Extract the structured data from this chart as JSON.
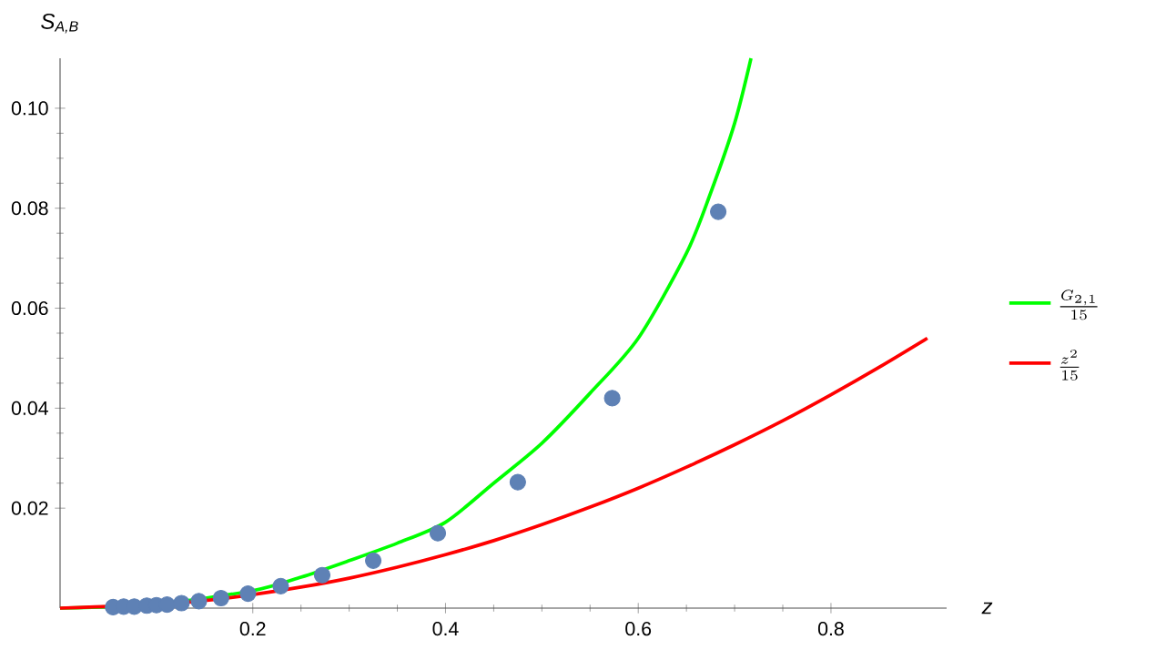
{
  "chart_data": {
    "type": "line",
    "xlabel": "z",
    "ylabel": "S$_{A,B}$",
    "xlim": [
      0,
      0.92
    ],
    "ylim": [
      0,
      0.11
    ],
    "xticks": [
      0.2,
      0.4,
      0.6,
      0.8
    ],
    "yticks": [
      0.02,
      0.04,
      0.06,
      0.08,
      {
        "value": 0.1,
        "label": "0.10"
      }
    ],
    "legend": "right",
    "series": [
      {
        "type": "scatter",
        "color": "#5e81b5",
        "marker": "circle",
        "x": [
          0.055,
          0.066,
          0.077,
          0.09,
          0.1,
          0.111,
          0.126,
          0.144,
          0.167,
          0.195,
          0.229,
          0.272,
          0.325,
          0.392,
          0.475,
          0.573,
          0.683
        ],
        "values": [
          0.0002,
          0.0003,
          0.0003,
          0.0005,
          0.0006,
          0.0007,
          0.001,
          0.0014,
          0.002,
          0.0029,
          0.0044,
          0.0066,
          0.0095,
          0.015,
          0.0252,
          0.042,
          0.0793
        ]
      },
      {
        "name": "\\frac{G_{2,1}}{15}",
        "color": "#00ff00",
        "x": [
          0,
          0.1,
          0.2,
          0.25,
          0.3,
          0.35,
          0.4,
          0.45,
          0.5,
          0.55,
          0.6,
          0.65,
          0.675,
          0.7,
          0.717
        ],
        "values": [
          0,
          0.0008,
          0.0035,
          0.0062,
          0.0095,
          0.013,
          0.0172,
          0.025,
          0.033,
          0.043,
          0.054,
          0.071,
          0.083,
          0.097,
          0.11
        ]
      },
      {
        "name": "\\frac{z^{2}}{15}",
        "color": "#ff0000",
        "x": [
          0,
          0.1,
          0.15,
          0.2,
          0.25,
          0.3,
          0.35,
          0.4,
          0.45,
          0.5,
          0.55,
          0.6,
          0.65,
          0.7,
          0.75,
          0.8,
          0.85,
          0.9
        ],
        "values": [
          0,
          0.0007,
          0.0015,
          0.0027,
          0.0042,
          0.006,
          0.0082,
          0.0107,
          0.0135,
          0.0167,
          0.0202,
          0.024,
          0.0282,
          0.0327,
          0.0375,
          0.0427,
          0.0482,
          0.054
        ]
      }
    ]
  }
}
